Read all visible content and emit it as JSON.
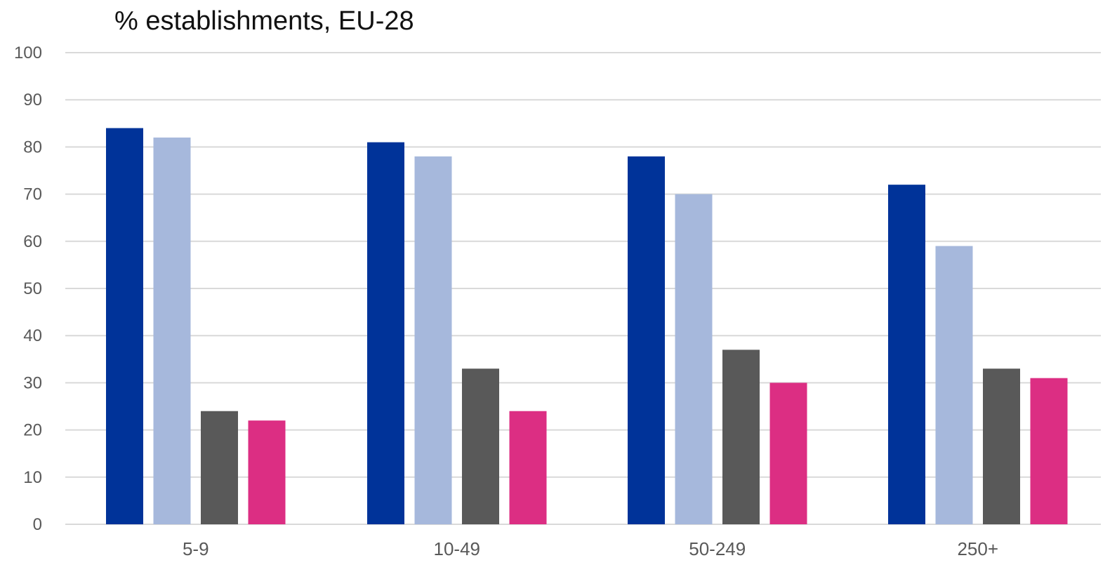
{
  "chart_data": {
    "type": "bar",
    "title": "% establishments, EU-28",
    "xlabel": "",
    "ylabel": "",
    "ylim": [
      0,
      100
    ],
    "yticks": [
      0,
      10,
      20,
      30,
      40,
      50,
      60,
      70,
      80,
      90,
      100
    ],
    "grid": true,
    "legend": "none",
    "categories": [
      "5-9",
      "10-49",
      "50-249",
      "250+"
    ],
    "series": [
      {
        "color": "#003399",
        "values": [
          84,
          81,
          78,
          72
        ]
      },
      {
        "color": "#a6b8dc",
        "values": [
          82,
          78,
          70,
          59
        ]
      },
      {
        "color": "#595959",
        "values": [
          24,
          33,
          37,
          33
        ]
      },
      {
        "color": "#dc2e83",
        "values": [
          22,
          24,
          30,
          31
        ]
      }
    ]
  }
}
